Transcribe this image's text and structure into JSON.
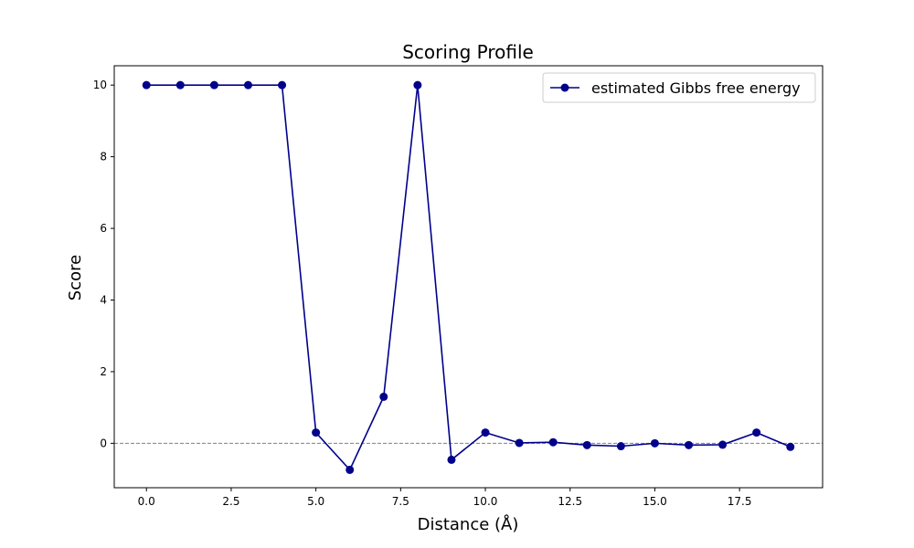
{
  "chart_data": {
    "type": "line",
    "title": "Scoring Profile",
    "xlabel": "Distance (Å)",
    "ylabel": "Score",
    "xlim": [
      -0.95,
      19.95
    ],
    "ylim": [
      -1.24,
      10.54
    ],
    "xticks": [
      0.0,
      2.5,
      5.0,
      7.5,
      10.0,
      12.5,
      15.0,
      17.5
    ],
    "xtick_labels": [
      "0.0",
      "2.5",
      "5.0",
      "7.5",
      "10.0",
      "12.5",
      "15.0",
      "17.5"
    ],
    "yticks": [
      0,
      2,
      4,
      6,
      8,
      10
    ],
    "ytick_labels": [
      "0",
      "2",
      "4",
      "6",
      "8",
      "10"
    ],
    "grid": false,
    "reference_line": {
      "y": 0,
      "style": "dashed",
      "color": "#808080"
    },
    "legend_position": "top-right",
    "series": [
      {
        "name": "estimated Gibbs free energy",
        "color": "#00008b",
        "marker": "circle",
        "x": [
          0,
          1,
          2,
          3,
          4,
          5,
          6,
          7,
          8,
          9,
          10,
          11,
          12,
          13,
          14,
          15,
          16,
          17,
          18,
          19
        ],
        "y": [
          10.0,
          10.0,
          10.0,
          10.0,
          10.0,
          0.3,
          -0.74,
          1.3,
          10.0,
          -0.46,
          0.3,
          0.01,
          0.03,
          -0.05,
          -0.08,
          0.0,
          -0.05,
          -0.04,
          0.3,
          -0.1
        ]
      }
    ]
  }
}
